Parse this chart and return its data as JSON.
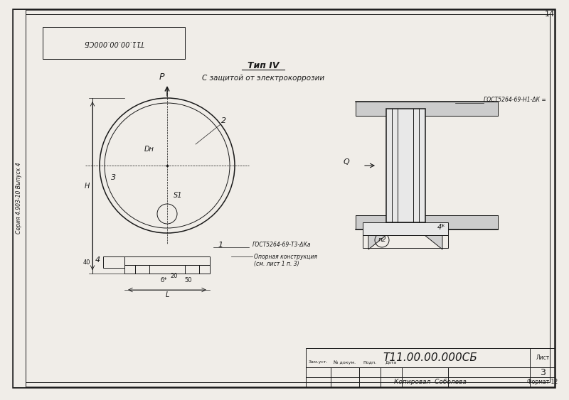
{
  "bg_color": "#f0ede8",
  "border_color": "#1a1a1a",
  "line_color": "#1a1a1a",
  "title_text": "Тип IV",
  "subtitle_text": "С защитой от электрокоррозии",
  "stamp_title": "Т11.00.00.000СБ",
  "stamp_sheet": "Лист",
  "stamp_sheet_num": "3",
  "stamp_copied": "Копировал  Соболева",
  "stamp_format": "Формат 12",
  "stamp_cols": [
    "Зам.уст.",
    "№ докум.",
    "Подп.",
    "Дата"
  ],
  "top_label": "Т11.00.00.000СБ",
  "side_label": "Серия 4.903-10 Выпуск 4",
  "page_num": "14",
  "gost_label1": "ГОСТ5264-69-Т3-ΔКа",
  "gost_label2": "ГОСТ5264-69-Н1-ΔК =",
  "note_label": "Опорная конструкция\n(см. лист 1 п. 3)",
  "dim_labels": {
    "P": "P",
    "D": "Dн",
    "s1": "S1",
    "n": "Н",
    "dim_40": "40",
    "dim_20": "20",
    "dim_50": "50",
    "dim_b": "б*",
    "dim_L": "L",
    "num1": "1",
    "num2": "2",
    "num3": "3",
    "num4": "4",
    "num_n2": "п2",
    "Q_label": "Q"
  }
}
